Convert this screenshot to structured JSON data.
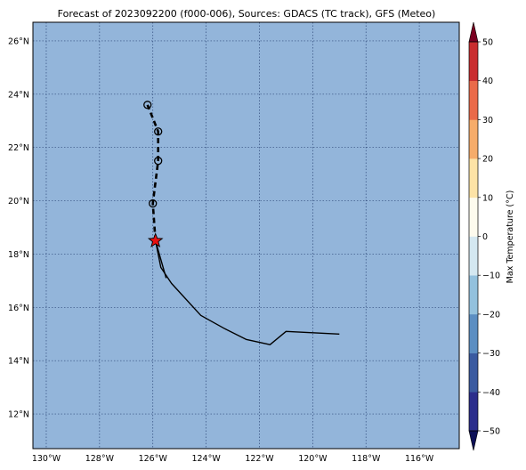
{
  "title": "Forecast of 2023092200 (f000-006), Sources: GDACS (TC track), GFS (Meteo)",
  "map": {
    "ocean_color": "#93b5da",
    "grid_color": "#2f4a7a",
    "lon_ticks": [
      {
        "value": -130,
        "label": "130°W"
      },
      {
        "value": -128,
        "label": "128°W"
      },
      {
        "value": -126,
        "label": "126°W"
      },
      {
        "value": -124,
        "label": "124°W"
      },
      {
        "value": -122,
        "label": "122°W"
      },
      {
        "value": -120,
        "label": "120°W"
      },
      {
        "value": -118,
        "label": "118°W"
      },
      {
        "value": -116,
        "label": "116°W"
      }
    ],
    "lat_ticks": [
      {
        "value": 12,
        "label": "12°N"
      },
      {
        "value": 14,
        "label": "14°N"
      },
      {
        "value": 16,
        "label": "16°N"
      },
      {
        "value": 18,
        "label": "18°N"
      },
      {
        "value": 20,
        "label": "20°N"
      },
      {
        "value": 22,
        "label": "22°N"
      },
      {
        "value": 24,
        "label": "24°N"
      },
      {
        "value": 26,
        "label": "26°N"
      }
    ],
    "lon_range": [
      -130.5,
      -114.5
    ],
    "lat_range": [
      10.7,
      26.7
    ]
  },
  "track": {
    "past_track": [
      [
        -119.0,
        15.0
      ],
      [
        -121.0,
        15.1
      ],
      [
        -121.6,
        14.6
      ],
      [
        -122.5,
        14.8
      ],
      [
        -123.3,
        15.2
      ],
      [
        -124.2,
        15.7
      ],
      [
        -125.3,
        16.9
      ],
      [
        -125.7,
        17.5
      ],
      [
        -125.9,
        18.5
      ]
    ],
    "past_track_tail": [
      [
        -125.9,
        18.5
      ],
      [
        -125.5,
        17.1
      ]
    ],
    "current_position": [
      -125.9,
      18.5
    ],
    "forecast_track": [
      [
        -125.9,
        18.5
      ],
      [
        -126.0,
        19.9
      ],
      [
        -125.8,
        21.5
      ],
      [
        -125.8,
        22.6
      ],
      [
        -126.2,
        23.6
      ]
    ],
    "forecast_points": [
      [
        -126.0,
        19.9
      ],
      [
        -125.8,
        21.5
      ],
      [
        -125.8,
        22.6
      ],
      [
        -126.2,
        23.6
      ]
    ],
    "star_color": "#e81010"
  },
  "colorbar": {
    "label": "Max Temperature (°C)",
    "ticks": [
      "−50",
      "−40",
      "−30",
      "−20",
      "−10",
      "0",
      "10",
      "20",
      "30",
      "40",
      "50"
    ],
    "colors": [
      "#2b2d8c",
      "#3a5aa0",
      "#5b8ec2",
      "#93c1dd",
      "#d4e8f1",
      "#fdfbee",
      "#fde3a6",
      "#f6ac6a",
      "#ea6a49",
      "#c92d2f",
      "#99002c"
    ],
    "under_color": "#0d1057",
    "over_color": "#7b0022"
  }
}
